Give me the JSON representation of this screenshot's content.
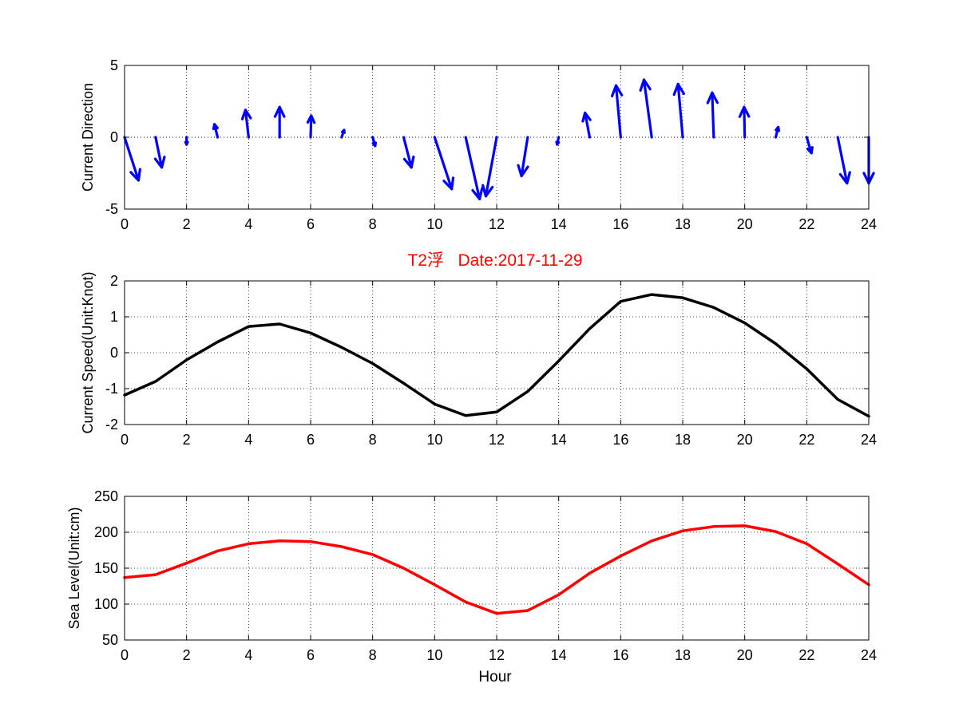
{
  "figure": {
    "title": "T2浮   Date:2017-11-29",
    "title_color": "#ff0000",
    "xlabel": "Hour"
  },
  "chart_data": [
    {
      "type": "quiver",
      "ylabel": "Current Direction",
      "xlim": [
        0,
        24
      ],
      "ylim": [
        -5,
        5
      ],
      "yticks": [
        -5,
        0,
        5
      ],
      "xticks": [
        0,
        2,
        4,
        6,
        8,
        10,
        12,
        14,
        16,
        18,
        20,
        22,
        24
      ],
      "grid": true,
      "color": "#0000ff",
      "x": [
        0,
        1,
        2,
        3,
        4,
        5,
        6,
        7,
        8,
        9,
        10,
        11,
        12,
        13,
        14,
        15,
        16,
        17,
        18,
        19,
        20,
        21,
        22,
        23,
        24
      ],
      "u": [
        0.45,
        0.2,
        0.0,
        -0.1,
        -0.1,
        0.0,
        0.02,
        0.08,
        0.08,
        0.25,
        0.55,
        0.45,
        -0.35,
        -0.2,
        -0.05,
        -0.15,
        -0.15,
        -0.25,
        -0.15,
        -0.05,
        -0.02,
        0.08,
        0.15,
        0.3,
        0.0
      ],
      "v": [
        -3.0,
        -2.1,
        -0.5,
        0.9,
        1.9,
        2.1,
        1.5,
        0.5,
        -0.6,
        -2.1,
        -3.6,
        -4.3,
        -4.1,
        -2.7,
        -0.5,
        1.7,
        3.6,
        4.0,
        3.7,
        3.1,
        2.1,
        0.7,
        -1.1,
        -3.2,
        -3.2
      ]
    },
    {
      "type": "line",
      "ylabel": "Current Speed(Unit:Knot)",
      "xlim": [
        0,
        24
      ],
      "ylim": [
        -2,
        2
      ],
      "yticks": [
        -2,
        -1,
        0,
        1,
        2
      ],
      "xticks": [
        0,
        2,
        4,
        6,
        8,
        10,
        12,
        14,
        16,
        18,
        20,
        22,
        24
      ],
      "grid": true,
      "series": [
        {
          "color": "#000000",
          "x": [
            0,
            1,
            2,
            3,
            4,
            5,
            6,
            7,
            8,
            9,
            10,
            11,
            12,
            13,
            14,
            15,
            16,
            17,
            18,
            19,
            20,
            21,
            22,
            23,
            24
          ],
          "values": [
            -1.18,
            -0.8,
            -0.2,
            0.3,
            0.73,
            0.8,
            0.55,
            0.15,
            -0.3,
            -0.85,
            -1.43,
            -1.75,
            -1.65,
            -1.08,
            -0.23,
            0.67,
            1.43,
            1.62,
            1.53,
            1.26,
            0.83,
            0.25,
            -0.45,
            -1.3,
            -1.77
          ]
        }
      ]
    },
    {
      "type": "line",
      "ylabel": "Sea Level(Unit:cm)",
      "xlabel": "Hour",
      "xlim": [
        0,
        24
      ],
      "ylim": [
        50,
        250
      ],
      "yticks": [
        50,
        100,
        150,
        200,
        250
      ],
      "xticks": [
        0,
        2,
        4,
        6,
        8,
        10,
        12,
        14,
        16,
        18,
        20,
        22,
        24
      ],
      "grid": true,
      "series": [
        {
          "color": "#ff0000",
          "x": [
            0,
            1,
            2,
            3,
            4,
            5,
            6,
            7,
            8,
            9,
            10,
            11,
            12,
            13,
            14,
            15,
            16,
            17,
            18,
            19,
            20,
            21,
            22,
            23,
            24
          ],
          "values": [
            137,
            141,
            157,
            174,
            184,
            188,
            187,
            180,
            169,
            150,
            127,
            103,
            87,
            91,
            113,
            143,
            167,
            188,
            202,
            208,
            209,
            201,
            184,
            156,
            127
          ]
        }
      ]
    }
  ]
}
